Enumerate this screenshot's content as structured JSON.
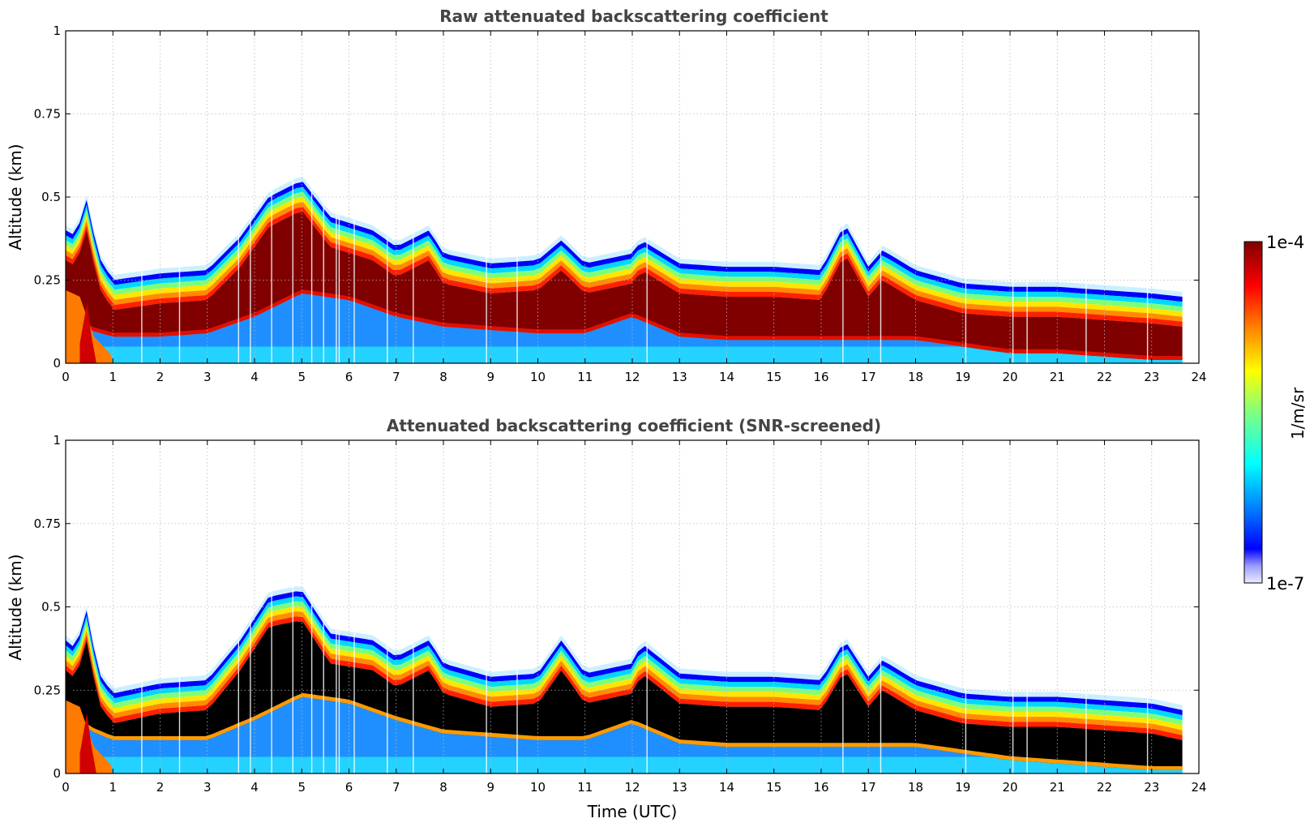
{
  "chart_data": [
    {
      "type": "heatmap",
      "title": "Raw attenuated backscattering coefficient",
      "xlabel": "",
      "ylabel": "Altitude (km)",
      "xlim": [
        0,
        24
      ],
      "ylim": [
        0,
        1
      ],
      "x_ticks": [
        "0",
        "1",
        "2",
        "3",
        "4",
        "5",
        "6",
        "7",
        "8",
        "9",
        "10",
        "11",
        "12",
        "13",
        "14",
        "15",
        "16",
        "17",
        "18",
        "19",
        "20",
        "21",
        "22",
        "23",
        "24"
      ],
      "y_ticks": [
        "0",
        "0.25",
        "0.5",
        "0.75",
        "1"
      ],
      "grid": true,
      "data_end_time": 23.65,
      "layer_top_km": {
        "time": [
          0,
          0.25,
          0.4,
          0.7,
          1.0,
          2.0,
          3.0,
          3.7,
          4.3,
          5.0,
          5.6,
          6.5,
          7.0,
          7.7,
          8.0,
          9.0,
          10.0,
          10.5,
          11.0,
          12.0,
          12.2,
          13.0,
          14.0,
          15.0,
          16.0,
          16.5,
          17.0,
          17.3,
          18.0,
          19.0,
          20.0,
          21.0,
          22.0,
          23.0,
          23.65
        ],
        "value": [
          0.4,
          0.38,
          0.52,
          0.32,
          0.25,
          0.27,
          0.28,
          0.38,
          0.5,
          0.55,
          0.44,
          0.4,
          0.35,
          0.4,
          0.33,
          0.3,
          0.31,
          0.37,
          0.3,
          0.33,
          0.37,
          0.3,
          0.29,
          0.29,
          0.28,
          0.42,
          0.29,
          0.34,
          0.28,
          0.24,
          0.23,
          0.23,
          0.22,
          0.21,
          0.2
        ]
      },
      "saturated_bottom_km": {
        "time": [
          0,
          0.5,
          1.0,
          2.0,
          3.0,
          4.0,
          5.0,
          6.0,
          7.0,
          8.0,
          9.0,
          10.0,
          11.0,
          12.0,
          13.0,
          14.0,
          15.0,
          16.0,
          17.0,
          18.0,
          19.0,
          20.0,
          21.0,
          22.0,
          23.0,
          23.65
        ],
        "value": [
          0.16,
          0.1,
          0.08,
          0.08,
          0.09,
          0.14,
          0.21,
          0.19,
          0.14,
          0.11,
          0.1,
          0.09,
          0.09,
          0.14,
          0.08,
          0.07,
          0.07,
          0.07,
          0.07,
          0.07,
          0.05,
          0.03,
          0.03,
          0.02,
          0.01,
          0.01
        ]
      },
      "unit": "1/m/sr",
      "screened_core": false
    },
    {
      "type": "heatmap",
      "title": "Attenuated backscattering coefficient (SNR-screened)",
      "xlabel": "Time (UTC)",
      "ylabel": "Altitude (km)",
      "xlim": [
        0,
        24
      ],
      "ylim": [
        0,
        1
      ],
      "x_ticks": [
        "0",
        "1",
        "2",
        "3",
        "4",
        "5",
        "6",
        "7",
        "8",
        "9",
        "10",
        "11",
        "12",
        "13",
        "14",
        "15",
        "16",
        "17",
        "18",
        "19",
        "20",
        "21",
        "22",
        "23",
        "24"
      ],
      "y_ticks": [
        "0",
        "0.25",
        "0.5",
        "0.75",
        "1"
      ],
      "grid": true,
      "data_end_time": 23.65,
      "layer_top_km": {
        "time": [
          0,
          0.25,
          0.4,
          0.7,
          1.0,
          2.0,
          3.0,
          3.7,
          4.3,
          5.0,
          5.6,
          6.5,
          7.0,
          7.7,
          8.0,
          9.0,
          10.0,
          10.5,
          11.0,
          12.0,
          12.2,
          13.0,
          14.0,
          15.0,
          16.0,
          16.5,
          17.0,
          17.3,
          18.0,
          19.0,
          20.0,
          21.0,
          22.0,
          23.0,
          23.65
        ],
        "value": [
          0.4,
          0.37,
          0.52,
          0.3,
          0.24,
          0.27,
          0.28,
          0.4,
          0.53,
          0.55,
          0.42,
          0.4,
          0.35,
          0.4,
          0.33,
          0.29,
          0.3,
          0.4,
          0.3,
          0.33,
          0.39,
          0.3,
          0.29,
          0.29,
          0.28,
          0.4,
          0.29,
          0.34,
          0.28,
          0.24,
          0.23,
          0.23,
          0.22,
          0.21,
          0.19
        ]
      },
      "saturated_bottom_km": {
        "time": [
          0,
          0.5,
          1.0,
          2.0,
          3.0,
          4.0,
          5.0,
          6.0,
          7.0,
          8.0,
          9.0,
          10.0,
          11.0,
          12.0,
          13.0,
          14.0,
          15.0,
          16.0,
          17.0,
          18.0,
          19.0,
          20.0,
          21.0,
          22.0,
          23.0,
          23.65
        ],
        "value": [
          0.2,
          0.13,
          0.1,
          0.1,
          0.1,
          0.16,
          0.23,
          0.21,
          0.16,
          0.12,
          0.11,
          0.1,
          0.1,
          0.15,
          0.09,
          0.08,
          0.08,
          0.08,
          0.08,
          0.08,
          0.06,
          0.04,
          0.03,
          0.02,
          0.01,
          0.01
        ]
      },
      "unit": "1/m/sr",
      "screened_core": true
    }
  ],
  "colorbar": {
    "colormap": "jet",
    "max_label": "1e-4",
    "min_label": "1e-7",
    "label": "1/m/sr",
    "saturated_color": "#800000",
    "screened_color": "#000000"
  }
}
